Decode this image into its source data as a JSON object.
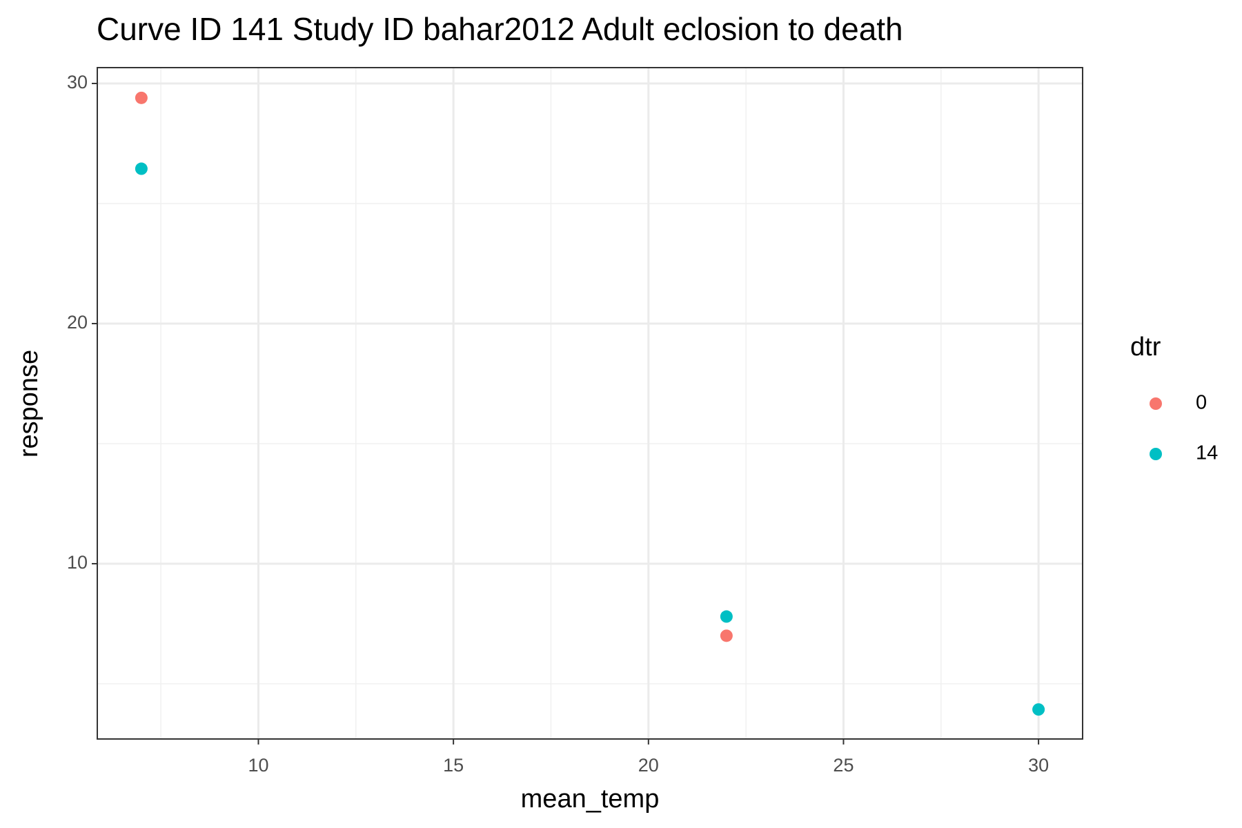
{
  "chart_data": {
    "type": "scatter",
    "title": "Curve ID 141 Study ID bahar2012 Adult eclosion to death",
    "xlabel": "mean_temp",
    "ylabel": "response",
    "legend_title": "dtr",
    "legend_position": "right",
    "xlim": [
      5.87,
      31.13
    ],
    "ylim": [
      2.7,
      30.66
    ],
    "xticks": [
      10,
      15,
      20,
      25,
      30
    ],
    "yticks": [
      10,
      20,
      30
    ],
    "xminor": [
      7.5,
      12.5,
      17.5,
      22.5,
      27.5
    ],
    "yminor": [
      5,
      15,
      25
    ],
    "grid": true,
    "series": [
      {
        "name": "0",
        "color": "#f8766d",
        "x": [
          7,
          22
        ],
        "values": [
          29.4,
          7.0
        ]
      },
      {
        "name": "14",
        "color": "#00bfc4",
        "x": [
          7,
          22,
          30
        ],
        "values": [
          26.45,
          7.8,
          3.93
        ]
      }
    ]
  }
}
